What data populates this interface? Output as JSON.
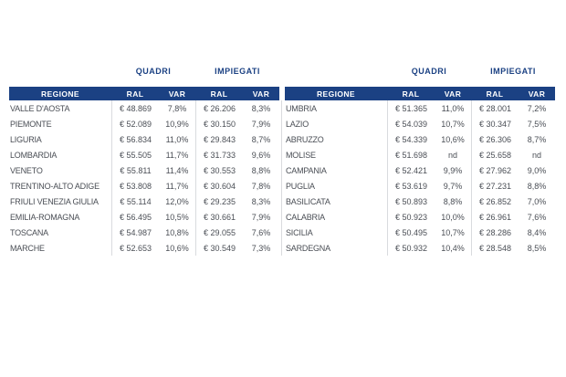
{
  "table": {
    "group_headers": {
      "quadri": "QUADRI",
      "impiegati": "IMPIEGATI"
    },
    "columns": {
      "regione": "REGIONE",
      "ral": "RAL",
      "var": "VAR"
    },
    "left_rows": [
      {
        "region": "VALLE D'AOSTA",
        "quadri_ral": "€ 48.869",
        "quadri_var": "7,8%",
        "impiegati_ral": "€ 26.206",
        "impiegati_var": "8,3%"
      },
      {
        "region": "PIEMONTE",
        "quadri_ral": "€ 52.089",
        "quadri_var": "10,9%",
        "impiegati_ral": "€ 30.150",
        "impiegati_var": "7,9%"
      },
      {
        "region": "LIGURIA",
        "quadri_ral": "€ 56.834",
        "quadri_var": "11,0%",
        "impiegati_ral": "€ 29.843",
        "impiegati_var": "8,7%"
      },
      {
        "region": "LOMBARDIA",
        "quadri_ral": "€ 55.505",
        "quadri_var": "11,7%",
        "impiegati_ral": "€ 31.733",
        "impiegati_var": "9,6%"
      },
      {
        "region": "VENETO",
        "quadri_ral": "€ 55.811",
        "quadri_var": "11,4%",
        "impiegati_ral": "€ 30.553",
        "impiegati_var": "8,8%"
      },
      {
        "region": "TRENTINO-ALTO ADIGE",
        "quadri_ral": "€ 53.808",
        "quadri_var": "11,7%",
        "impiegati_ral": "€ 30.604",
        "impiegati_var": "7,8%"
      },
      {
        "region": "FRIULI VENEZIA GIULIA",
        "quadri_ral": "€ 55.114",
        "quadri_var": "12,0%",
        "impiegati_ral": "€ 29.235",
        "impiegati_var": "8,3%"
      },
      {
        "region": "EMILIA-ROMAGNA",
        "quadri_ral": "€ 56.495",
        "quadri_var": "10,5%",
        "impiegati_ral": "€ 30.661",
        "impiegati_var": "7,9%"
      },
      {
        "region": "TOSCANA",
        "quadri_ral": "€ 54.987",
        "quadri_var": "10,8%",
        "impiegati_ral": "€ 29.055",
        "impiegati_var": "7,6%"
      },
      {
        "region": "MARCHE",
        "quadri_ral": "€ 52.653",
        "quadri_var": "10,6%",
        "impiegati_ral": "€ 30.549",
        "impiegati_var": "7,3%"
      }
    ],
    "right_rows": [
      {
        "region": "UMBRIA",
        "quadri_ral": "€ 51.365",
        "quadri_var": "11,0%",
        "impiegati_ral": "€ 28.001",
        "impiegati_var": "7,2%"
      },
      {
        "region": "LAZIO",
        "quadri_ral": "€ 54.039",
        "quadri_var": "10,7%",
        "impiegati_ral": "€ 30.347",
        "impiegati_var": "7,5%"
      },
      {
        "region": "ABRUZZO",
        "quadri_ral": "€ 54.339",
        "quadri_var": "10,6%",
        "impiegati_ral": "€ 26.306",
        "impiegati_var": "8,7%"
      },
      {
        "region": "MOLISE",
        "quadri_ral": "€ 51.698",
        "quadri_var": "nd",
        "impiegati_ral": "€ 25.658",
        "impiegati_var": "nd"
      },
      {
        "region": "CAMPANIA",
        "quadri_ral": "€ 52.421",
        "quadri_var": "9,9%",
        "impiegati_ral": "€ 27.962",
        "impiegati_var": "9,0%"
      },
      {
        "region": "PUGLIA",
        "quadri_ral": "€ 53.619",
        "quadri_var": "9,7%",
        "impiegati_ral": "€ 27.231",
        "impiegati_var": "8,8%"
      },
      {
        "region": "BASILICATA",
        "quadri_ral": "€ 50.893",
        "quadri_var": "8,8%",
        "impiegati_ral": "€ 26.852",
        "impiegati_var": "7,0%"
      },
      {
        "region": "CALABRIA",
        "quadri_ral": "€ 50.923",
        "quadri_var": "10,0%",
        "impiegati_ral": "€ 26.961",
        "impiegati_var": "7,6%"
      },
      {
        "region": "SICILIA",
        "quadri_ral": "€ 50.495",
        "quadri_var": "10,7%",
        "impiegati_ral": "€ 28.286",
        "impiegati_var": "8,4%"
      },
      {
        "region": "SARDEGNA",
        "quadri_ral": "€ 50.932",
        "quadri_var": "10,4%",
        "impiegati_ral": "€ 28.548",
        "impiegati_var": "8,5%"
      }
    ]
  },
  "colors": {
    "header_bg": "#1b4183",
    "header_text": "#ffffff",
    "group_label_text": "#1b4183",
    "body_text": "#4a4e55",
    "separator": "#d9dbde",
    "background": "#ffffff"
  }
}
